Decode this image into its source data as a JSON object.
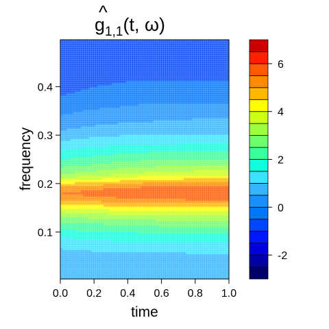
{
  "chart_data": {
    "type": "heatmap",
    "title": {
      "base": "g",
      "accent": "^",
      "subscript": "1,1",
      "args": "(t, ω)"
    },
    "xlabel": "time",
    "ylabel": "frequency",
    "xlim": [
      0,
      1
    ],
    "ylim": [
      0.003,
      0.497
    ],
    "xticks": [
      "0.0",
      "0.2",
      "0.4",
      "0.6",
      "0.8",
      "1.0"
    ],
    "xtick_values": [
      0,
      0.2,
      0.4,
      0.6,
      0.8,
      1.0
    ],
    "yticks": [
      "0.1",
      "0.2",
      "0.3",
      "0.4"
    ],
    "ytick_values": [
      0.1,
      0.2,
      0.3,
      0.4
    ],
    "colorbar": {
      "range": [
        -3,
        7
      ],
      "ticks": [
        "-2",
        "0",
        "2",
        "4",
        "6"
      ],
      "tick_values": [
        -2,
        0,
        2,
        4,
        6
      ],
      "levels": [
        -3,
        -2.5,
        -2,
        -1.5,
        -1,
        -0.5,
        0,
        0.5,
        1,
        1.5,
        2,
        2.5,
        3,
        3.5,
        4,
        4.5,
        5,
        5.5,
        6,
        6.5,
        7
      ],
      "colors": [
        "#00006a",
        "#0000a6",
        "#0000dc",
        "#0018ff",
        "#0046ff",
        "#0077ff",
        "#1a90ff",
        "#33b6ff",
        "#39e3ff",
        "#12ffdf",
        "#3aff9d",
        "#6cff6e",
        "#9dff3d",
        "#ccff16",
        "#ffff00",
        "#ffb700",
        "#ff8a00",
        "#ff5a00",
        "#ff2100",
        "#cc0000",
        "#960000"
      ]
    },
    "frequencies": [
      0.003,
      0.02,
      0.04,
      0.06,
      0.08,
      0.1,
      0.12,
      0.14,
      0.16,
      0.17,
      0.18,
      0.19,
      0.2,
      0.21,
      0.22,
      0.24,
      0.26,
      0.28,
      0.3,
      0.32,
      0.34,
      0.36,
      0.38,
      0.4,
      0.42,
      0.44,
      0.46,
      0.48,
      0.497
    ],
    "times": [
      0.0,
      0.2,
      0.4,
      0.6,
      0.8,
      1.0
    ],
    "values": [
      [
        0.6,
        0.6,
        0.6,
        0.6,
        0.6,
        0.6
      ],
      [
        0.6,
        0.6,
        0.6,
        0.6,
        0.6,
        0.6
      ],
      [
        0.6,
        0.7,
        0.7,
        0.7,
        0.7,
        0.7
      ],
      [
        0.9,
        1.0,
        1.0,
        1.0,
        1.1,
        1.1
      ],
      [
        1.3,
        1.4,
        1.5,
        1.5,
        1.5,
        1.5
      ],
      [
        1.8,
        2.0,
        2.0,
        2.1,
        2.1,
        2.1
      ],
      [
        2.5,
        2.6,
        2.7,
        2.8,
        2.8,
        2.8
      ],
      [
        3.4,
        3.6,
        3.7,
        3.8,
        3.8,
        3.8
      ],
      [
        4.6,
        4.8,
        5.0,
        5.1,
        5.1,
        5.1
      ],
      [
        5.2,
        5.4,
        5.5,
        5.6,
        5.7,
        5.7
      ],
      [
        5.5,
        5.7,
        5.8,
        5.9,
        5.9,
        5.9
      ],
      [
        5.2,
        5.4,
        5.6,
        5.7,
        5.8,
        5.8
      ],
      [
        4.5,
        4.7,
        5.0,
        5.2,
        5.3,
        5.3
      ],
      [
        3.6,
        3.9,
        4.2,
        4.4,
        4.5,
        4.5
      ],
      [
        3.0,
        3.2,
        3.5,
        3.7,
        3.8,
        3.8
      ],
      [
        2.3,
        2.5,
        2.7,
        2.8,
        2.9,
        2.9
      ],
      [
        1.7,
        1.9,
        2.1,
        2.2,
        2.2,
        2.2
      ],
      [
        1.2,
        1.4,
        1.5,
        1.5,
        1.6,
        1.6
      ],
      [
        0.7,
        0.9,
        1.0,
        1.0,
        1.0,
        1.0
      ],
      [
        0.3,
        0.5,
        0.6,
        0.6,
        0.7,
        0.7
      ],
      [
        0.0,
        0.2,
        0.3,
        0.4,
        0.4,
        0.4
      ],
      [
        -0.2,
        -0.1,
        0.0,
        0.1,
        0.1,
        0.1
      ],
      [
        -0.5,
        -0.3,
        -0.2,
        -0.2,
        -0.2,
        -0.2
      ],
      [
        -0.7,
        -0.5,
        -0.4,
        -0.4,
        -0.4,
        -0.4
      ],
      [
        -0.8,
        -0.7,
        -0.6,
        -0.6,
        -0.6,
        -0.6
      ],
      [
        -0.9,
        -0.8,
        -0.8,
        -0.7,
        -0.7,
        -0.7
      ],
      [
        -1.0,
        -0.9,
        -0.9,
        -0.8,
        -0.8,
        -0.8
      ],
      [
        -1.0,
        -0.9,
        -0.9,
        -0.9,
        -0.9,
        -0.9
      ],
      [
        -1.0,
        -1.0,
        -0.9,
        -0.9,
        -0.9,
        -0.9
      ]
    ]
  }
}
